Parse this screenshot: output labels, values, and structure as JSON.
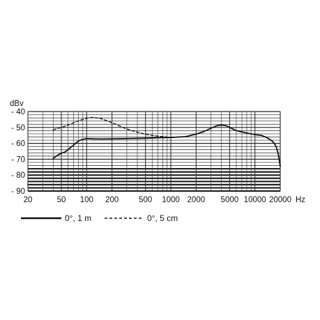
{
  "chart_data": {
    "type": "line",
    "title": "",
    "ylabel": "dBv",
    "xlabel": "Hz",
    "x_scale": "log",
    "xlim": [
      20,
      20000
    ],
    "ylim": [
      -90,
      -40
    ],
    "grid": true,
    "x_ticks": [
      20,
      50,
      100,
      200,
      500,
      1000,
      2000,
      5000,
      10000,
      20000
    ],
    "x_tick_labels": [
      "20",
      "50",
      "100",
      "200",
      "500",
      "1000",
      "2000",
      "5000",
      "10000",
      "20000"
    ],
    "y_ticks": [
      -40,
      -50,
      -60,
      -70,
      -80,
      -90
    ],
    "y_tick_labels": [
      "- 40",
      "- 50",
      "- 60",
      "- 70",
      "- 80",
      "- 90"
    ],
    "legend_position": "bottom-left",
    "series": [
      {
        "name": "0°, 1 m",
        "style": "solid",
        "color": "#111111",
        "points": [
          [
            40,
            -69.5
          ],
          [
            45,
            -67.5
          ],
          [
            50,
            -66.2
          ],
          [
            55,
            -65.5
          ],
          [
            60,
            -64
          ],
          [
            70,
            -61
          ],
          [
            80,
            -58.5
          ],
          [
            90,
            -57.5
          ],
          [
            100,
            -57
          ],
          [
            120,
            -57.2
          ],
          [
            150,
            -57.3
          ],
          [
            200,
            -57.2
          ],
          [
            300,
            -57
          ],
          [
            500,
            -56.8
          ],
          [
            700,
            -56.5
          ],
          [
            1000,
            -56.3
          ],
          [
            1500,
            -55.8
          ],
          [
            2000,
            -54.2
          ],
          [
            2500,
            -52.5
          ],
          [
            3000,
            -50.5
          ],
          [
            3500,
            -49
          ],
          [
            4000,
            -48.5
          ],
          [
            4500,
            -48.8
          ],
          [
            5000,
            -50
          ],
          [
            6000,
            -52
          ],
          [
            7000,
            -52.8
          ],
          [
            8000,
            -53.5
          ],
          [
            10000,
            -54.5
          ],
          [
            12000,
            -55
          ],
          [
            13000,
            -55.8
          ],
          [
            14000,
            -56.5
          ],
          [
            15000,
            -57.5
          ],
          [
            16000,
            -58.5
          ],
          [
            17000,
            -60
          ],
          [
            18000,
            -62.5
          ],
          [
            19000,
            -67
          ],
          [
            20000,
            -74.5
          ]
        ]
      },
      {
        "name": "0°, 5 cm",
        "style": "dashed",
        "color": "#111111",
        "points": [
          [
            40,
            -51.5
          ],
          [
            50,
            -50
          ],
          [
            60,
            -48.5
          ],
          [
            80,
            -45.8
          ],
          [
            100,
            -44.2
          ],
          [
            120,
            -43.6
          ],
          [
            150,
            -44.5
          ],
          [
            200,
            -47
          ],
          [
            300,
            -51
          ],
          [
            400,
            -53
          ],
          [
            500,
            -54.3
          ],
          [
            600,
            -55
          ],
          [
            700,
            -55.5
          ],
          [
            800,
            -55.8
          ],
          [
            900,
            -56
          ]
        ]
      }
    ]
  }
}
